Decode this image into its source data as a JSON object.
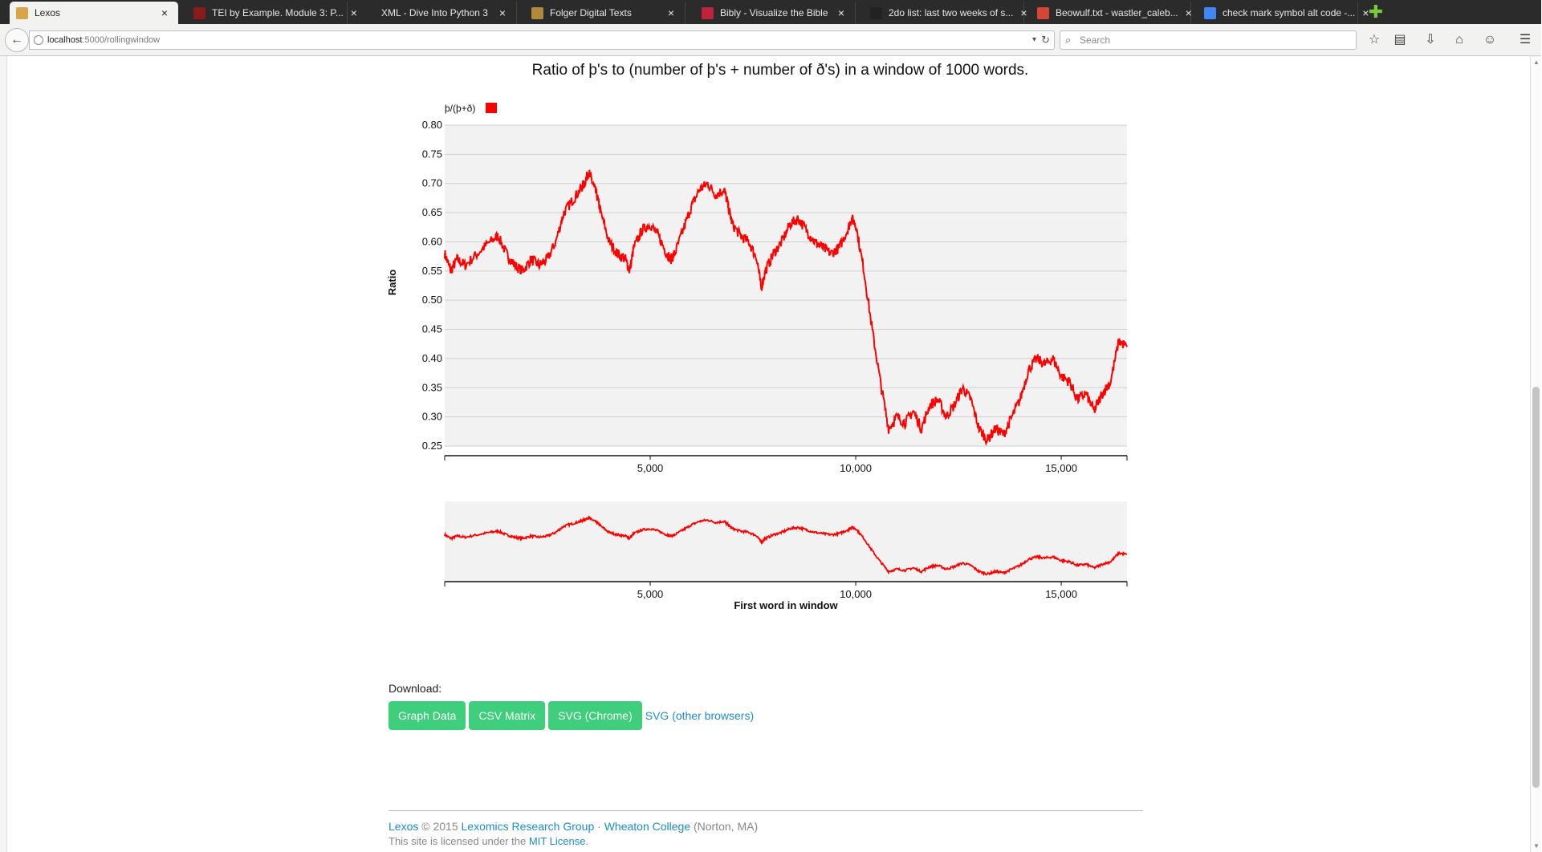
{
  "browser": {
    "tabs": [
      {
        "title": "Lexos",
        "active": true,
        "favicon_color": "#d9a54b"
      },
      {
        "title": "TEI by Example. Module 3: P...",
        "active": false,
        "favicon_color": "#8b1a1a"
      },
      {
        "title": "XML - Dive Into Python 3",
        "active": false,
        "favicon_color": ""
      },
      {
        "title": "Folger Digital Texts",
        "active": false,
        "favicon_color": "#b08a3a"
      },
      {
        "title": "Bibly - Visualize the Bible",
        "active": false,
        "favicon_color": "#c0223b"
      },
      {
        "title": "2do list: last two weeks of s...",
        "active": false,
        "favicon_color": "#222222"
      },
      {
        "title": "Beowulf.txt - wastler_caleb...",
        "active": false,
        "favicon_color": "#d44638"
      },
      {
        "title": "check mark symbol alt code -...",
        "active": false,
        "favicon_color": "#4285f4"
      }
    ],
    "url_host": "localhost",
    "url_rest": ":5000/rollingwindow",
    "search_placeholder": "Search"
  },
  "chart_data": {
    "type": "line",
    "title": "Ratio of þ's to (number of þ's + number of ð's) in a window of 1000 words.",
    "ylabel": "Ratio",
    "xlabel": "First word in window",
    "legend": "þ/(þ+ð)",
    "legend_placement": "top-left",
    "color": "#ff0000",
    "xlim": [
      0,
      16600
    ],
    "ylim": [
      0.25,
      0.8
    ],
    "y_ticks": [
      "0.80",
      "0.75",
      "0.70",
      "0.65",
      "0.60",
      "0.55",
      "0.50",
      "0.45",
      "0.40",
      "0.35",
      "0.30",
      "0.25"
    ],
    "x_ticks": [
      "5,000",
      "10,000",
      "15,000"
    ],
    "grid": true,
    "overview": true,
    "series": [
      {
        "x": [
          0,
          150,
          300,
          500,
          800,
          1100,
          1300,
          1500,
          1700,
          1900,
          2100,
          2300,
          2500,
          2700,
          2900,
          3100,
          3300,
          3400,
          3500,
          3600,
          3700,
          3800,
          4000,
          4200,
          4400,
          4500,
          4600,
          4800,
          5000,
          5200,
          5400,
          5500,
          5600,
          5800,
          6000,
          6200,
          6400,
          6600,
          6800,
          6900,
          7000,
          7200,
          7400,
          7600,
          7700,
          7800,
          8000,
          8200,
          8400,
          8600,
          8800,
          9000,
          9200,
          9400,
          9600,
          9800,
          9900,
          10000,
          10200,
          10400,
          10600,
          10800,
          11000,
          11200,
          11400,
          11600,
          11800,
          12000,
          12200,
          12400,
          12600,
          12800,
          13000,
          13200,
          13400,
          13600,
          13800,
          14000,
          14200,
          14400,
          14600,
          14800,
          15000,
          15200,
          15400,
          15600,
          15800,
          16000,
          16200,
          16400,
          16600
        ],
        "y": [
          0.58,
          0.55,
          0.57,
          0.56,
          0.58,
          0.6,
          0.61,
          0.58,
          0.56,
          0.55,
          0.57,
          0.56,
          0.57,
          0.6,
          0.65,
          0.67,
          0.69,
          0.7,
          0.72,
          0.7,
          0.68,
          0.65,
          0.6,
          0.58,
          0.57,
          0.55,
          0.59,
          0.62,
          0.63,
          0.61,
          0.58,
          0.57,
          0.58,
          0.62,
          0.66,
          0.69,
          0.7,
          0.68,
          0.69,
          0.66,
          0.63,
          0.61,
          0.6,
          0.57,
          0.52,
          0.55,
          0.58,
          0.6,
          0.63,
          0.64,
          0.62,
          0.6,
          0.59,
          0.58,
          0.59,
          0.62,
          0.64,
          0.63,
          0.55,
          0.45,
          0.36,
          0.28,
          0.3,
          0.29,
          0.31,
          0.28,
          0.32,
          0.33,
          0.3,
          0.32,
          0.35,
          0.33,
          0.28,
          0.26,
          0.28,
          0.27,
          0.3,
          0.33,
          0.38,
          0.4,
          0.39,
          0.4,
          0.37,
          0.36,
          0.33,
          0.34,
          0.31,
          0.34,
          0.36,
          0.43,
          0.42
        ]
      }
    ]
  },
  "download": {
    "label": "Download:",
    "buttons": [
      "Graph Data",
      "CSV Matrix",
      "SVG (Chrome)"
    ],
    "link": "SVG (other browsers)"
  },
  "footer": {
    "lexos": "Lexos",
    "copyright": " © 2015 ",
    "group": "Lexomics Research Group",
    "sep": " · ",
    "college": "Wheaton College",
    "location": " (Norton, MA)",
    "license_pre": "This site is licensed under the ",
    "license_link": "MIT License",
    "license_post": "."
  }
}
